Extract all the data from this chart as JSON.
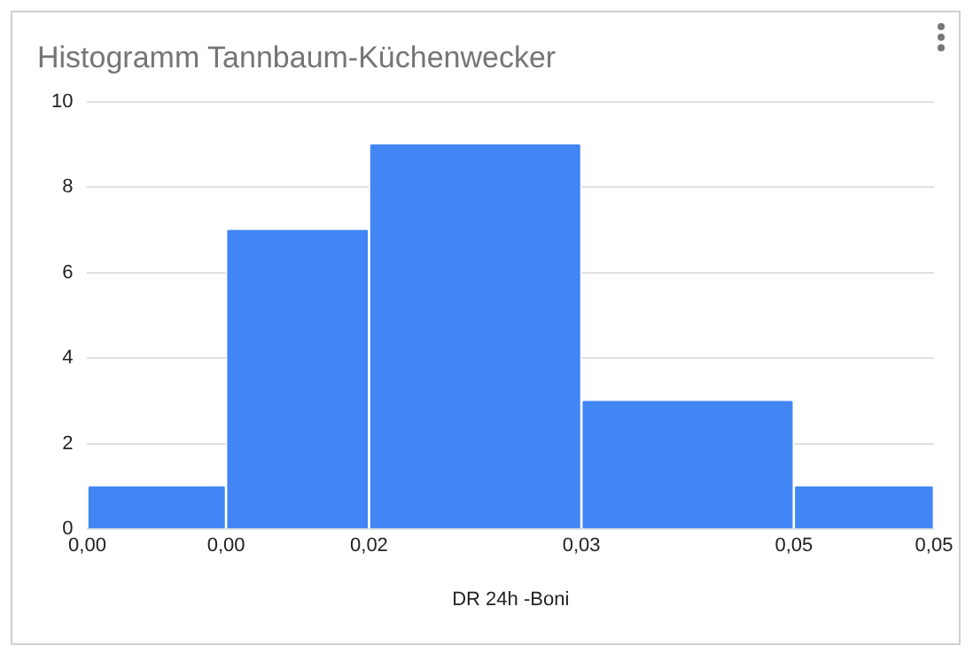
{
  "chart_data": {
    "type": "histogram",
    "title": "Histogramm Tannbaum-Küchenwecker",
    "xlabel": "DR 24h -Boni",
    "bins": [
      -0.0049,
      0.0049,
      0.015,
      0.03,
      0.045,
      0.0549
    ],
    "values": [
      1,
      7,
      9,
      3,
      1
    ],
    "color": "#4285f4",
    "xlim": [
      -0.0049,
      0.0549
    ],
    "xticks": [
      {
        "value": -0.0049,
        "label": "0,00"
      },
      {
        "value": 0.0049,
        "label": "0,00"
      },
      {
        "value": 0.015,
        "label": "0,02"
      },
      {
        "value": 0.03,
        "label": "0,03"
      },
      {
        "value": 0.045,
        "label": "0,05"
      },
      {
        "value": 0.0549,
        "label": "0,05"
      }
    ],
    "ylim": [
      0,
      10
    ],
    "yticks": [
      0,
      2,
      4,
      6,
      8,
      10
    ],
    "grid": "y"
  }
}
